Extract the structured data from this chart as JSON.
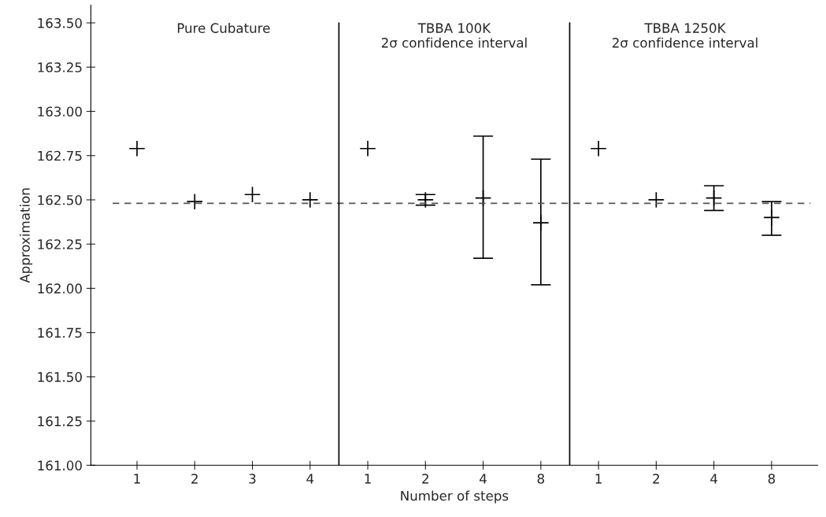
{
  "chart_data": {
    "type": "scatter",
    "xlabel": "Number of steps",
    "ylabel": "Approximation",
    "categories": [
      "1",
      "2",
      "3",
      "4",
      "1",
      "2",
      "4",
      "8",
      "1",
      "2",
      "4",
      "8"
    ],
    "series": [
      {
        "color": "#000000",
        "values": [
          162.79,
          162.49,
          162.53,
          162.5,
          162.79,
          162.5,
          162.51,
          162.37,
          162.79,
          162.5,
          162.51,
          162.4
        ],
        "errors": [
          null,
          null,
          null,
          null,
          null,
          [
            162.47,
            162.53
          ],
          [
            162.17,
            162.86
          ],
          [
            162.02,
            162.73
          ],
          null,
          null,
          [
            162.44,
            162.58
          ],
          [
            162.3,
            162.49
          ]
        ]
      }
    ],
    "marker": "cross",
    "ylim": [
      161.0,
      163.6
    ],
    "yticks": [
      {
        "value": 161.0,
        "label": "161.00"
      },
      {
        "value": 161.25,
        "label": "161.25"
      },
      {
        "value": 161.5,
        "label": "161.50"
      },
      {
        "value": 161.75,
        "label": "161.75"
      },
      {
        "value": 162.0,
        "label": "162.00"
      },
      {
        "value": 162.25,
        "label": "162.25"
      },
      {
        "value": 162.5,
        "label": "162.50"
      },
      {
        "value": 162.75,
        "label": "162.75"
      },
      {
        "value": 163.0,
        "label": "163.00"
      },
      {
        "value": 163.25,
        "label": "163.25"
      },
      {
        "value": 163.5,
        "label": "163.50"
      }
    ],
    "ref_lines": [
      {
        "axis": "y",
        "value": 162.48,
        "color": "#555555",
        "line_style": "dashed"
      }
    ],
    "annotations": [
      "Pure Cubature",
      "TBBA 100K\n2σ confidence interval",
      "TBBA 1250K\n2σ confidence interval"
    ],
    "grid": false,
    "legend": false
  }
}
